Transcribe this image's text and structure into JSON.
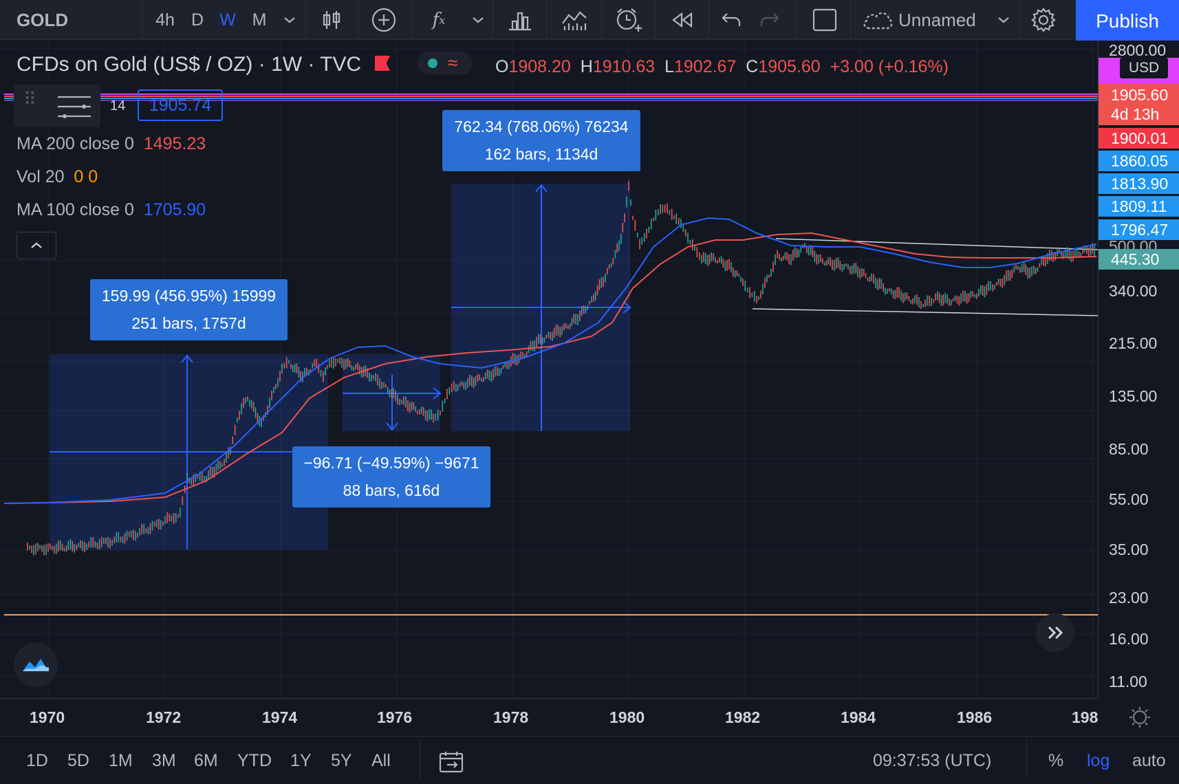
{
  "toolbar": {
    "symbol": "GOLD",
    "timeframes": [
      "4h",
      "D",
      "W",
      "M"
    ],
    "active_timeframe": "W",
    "layout_name": "Unnamed",
    "publish_label": "Publish"
  },
  "legend": {
    "title": "CFDs on Gold (US$ / OZ) · 1W · TVC",
    "ohlc": {
      "o_key": "O",
      "o": "1908.20",
      "h_key": "H",
      "h": "1910.63",
      "l_key": "L",
      "l": "1902.67",
      "c_key": "C",
      "c": "1905.60",
      "change": "+3.00 (+0.16%)"
    },
    "small_value": "14",
    "boxed_value": "1905.74",
    "indicators": [
      {
        "label": "MA 200 close 0",
        "value": "1495.23",
        "color": "#ef5350"
      },
      {
        "label": "Vol 20",
        "value": "0  0",
        "color": "#ff9800"
      },
      {
        "label": "MA 100 close 0",
        "value": "1705.90",
        "color": "#2962ff"
      }
    ]
  },
  "measurements": [
    {
      "line1": "159.99 (456.95%) 15999",
      "line2": "251 bars, 1757d"
    },
    {
      "line1": "−96.71 (−49.59%) −9671",
      "line2": "88 bars, 616d"
    },
    {
      "line1": "762.34 (768.06%) 76234",
      "line2": "162 bars, 1134d"
    }
  ],
  "price_axis": {
    "currency": "USD",
    "labels": [
      "2800.00",
      "500.00",
      "340.00",
      "215.00",
      "135.00",
      "85.00",
      "55.00",
      "35.00",
      "23.00",
      "16.00",
      "11.00"
    ],
    "tags": [
      {
        "text": "1905.60",
        "sub": "4d 13h",
        "color": "#ef5350"
      },
      {
        "text": "1900.01",
        "color": "#f23645"
      },
      {
        "text": "1860.05",
        "color": "#2196f3"
      },
      {
        "text": "1813.90",
        "color": "#2196f3"
      },
      {
        "text": "1809.11",
        "color": "#2196f3"
      },
      {
        "text": "1796.47",
        "color": "#2196f3"
      },
      {
        "text": "445.30",
        "color": "#4ca3a0"
      }
    ]
  },
  "time_axis": {
    "labels": [
      "1970",
      "1972",
      "1974",
      "1976",
      "1978",
      "1980",
      "1982",
      "1984",
      "1986",
      "198"
    ]
  },
  "bottombar": {
    "ranges": [
      "1D",
      "5D",
      "1M",
      "3M",
      "6M",
      "YTD",
      "1Y",
      "5Y",
      "All"
    ],
    "clock": "09:37:53 (UTC)",
    "percent": "%",
    "log": "log",
    "auto": "auto"
  },
  "colors": {
    "ma200": "#ef5350",
    "ma100": "#2962ff",
    "accent": "#2962ff",
    "measure": "#2a6fd4"
  }
}
